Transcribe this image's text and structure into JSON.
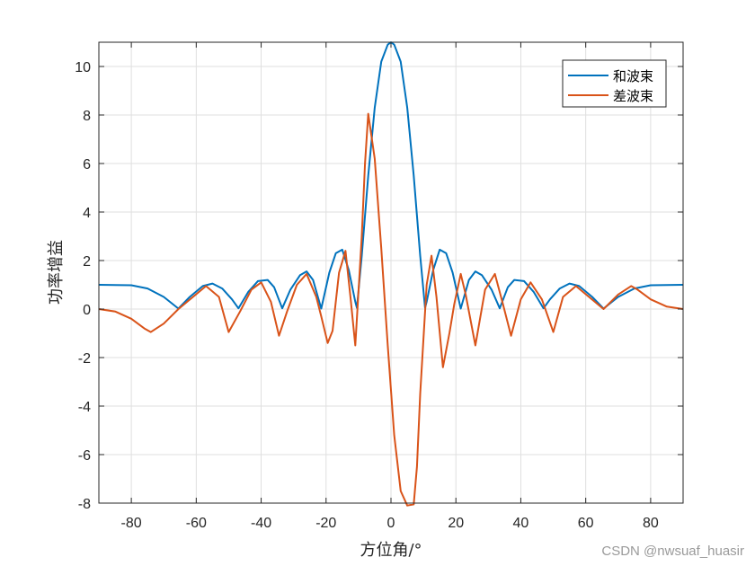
{
  "chart_data": {
    "type": "line",
    "title": "",
    "xlabel": "方位角/°",
    "ylabel": "功率增益",
    "xlim": [
      -90,
      90
    ],
    "ylim": [
      -8,
      11
    ],
    "xticks": [
      -80,
      -60,
      -40,
      -20,
      0,
      20,
      40,
      60,
      80
    ],
    "yticks": [
      -8,
      -6,
      -4,
      -2,
      0,
      2,
      4,
      6,
      8,
      10
    ],
    "grid": true,
    "legend": "top-right",
    "series": [
      {
        "name": "和波束",
        "color": "#0072BD",
        "x": [
          -90,
          -80,
          -75,
          -70,
          -65.5,
          -62,
          -58,
          -55,
          -52,
          -49,
          -47,
          -44,
          -41,
          -38,
          -36,
          -33.5,
          -31,
          -28,
          -26,
          -24,
          -21.5,
          -19,
          -17,
          -15,
          -13,
          -11,
          -10.5,
          -9,
          -7,
          -5,
          -3,
          -1,
          0,
          1,
          3,
          5,
          7,
          9,
          10.5,
          11,
          13,
          15,
          17,
          19,
          21.5,
          24,
          26,
          28,
          31,
          33.5,
          36,
          38,
          41,
          44,
          47,
          49,
          52,
          55,
          58,
          62,
          65.5,
          70,
          75,
          80,
          90
        ],
        "y": [
          1.0,
          0.98,
          0.85,
          0.5,
          0.02,
          0.5,
          0.95,
          1.05,
          0.85,
          0.4,
          0.03,
          0.7,
          1.15,
          1.2,
          0.9,
          0.03,
          0.8,
          1.4,
          1.55,
          1.2,
          0.02,
          1.5,
          2.3,
          2.45,
          1.6,
          0.3,
          0.05,
          2.2,
          5.5,
          8.3,
          10.2,
          10.9,
          11.0,
          10.9,
          10.2,
          8.3,
          5.5,
          2.2,
          0.05,
          0.3,
          1.6,
          2.45,
          2.3,
          1.5,
          0.02,
          1.2,
          1.55,
          1.4,
          0.8,
          0.03,
          0.9,
          1.2,
          1.15,
          0.7,
          0.03,
          0.4,
          0.85,
          1.05,
          0.95,
          0.5,
          0.02,
          0.5,
          0.85,
          0.98,
          1.0
        ]
      },
      {
        "name": "差波束",
        "color": "#D95319",
        "x": [
          -90,
          -85,
          -80,
          -76,
          -74,
          -70,
          -65.5,
          -61,
          -57,
          -53,
          -50,
          -46.5,
          -43,
          -40,
          -37,
          -34.5,
          -32,
          -29,
          -26,
          -23,
          -21.5,
          -19.5,
          -18,
          -16,
          -14,
          -12.5,
          -11,
          -9,
          -8,
          -7,
          -5,
          -3,
          -1,
          1,
          3,
          5,
          7,
          8,
          9,
          11,
          12.5,
          14,
          16,
          18,
          19.5,
          21.5,
          23,
          26,
          29,
          32,
          34.5,
          37,
          40,
          43,
          46.5,
          50,
          53,
          57,
          61,
          65.5,
          70,
          74,
          76,
          80,
          85,
          90
        ],
        "y": [
          0,
          -0.1,
          -0.4,
          -0.8,
          -0.95,
          -0.6,
          0.0,
          0.5,
          0.95,
          0.5,
          -0.95,
          -0.1,
          0.8,
          1.1,
          0.3,
          -1.1,
          -0.1,
          1.0,
          1.45,
          0.5,
          -0.3,
          -1.4,
          -0.9,
          1.5,
          2.4,
          0.5,
          -1.5,
          3.0,
          6.0,
          8.05,
          6.2,
          2.5,
          -1.5,
          -5.2,
          -7.5,
          -8.1,
          -8.05,
          -6.5,
          -3.5,
          1.0,
          2.2,
          0.5,
          -2.4,
          -1.0,
          0.2,
          1.45,
          0.6,
          -1.5,
          0.8,
          1.45,
          0.2,
          -1.1,
          0.4,
          1.1,
          0.4,
          -0.95,
          0.5,
          0.95,
          0.5,
          0.0,
          0.6,
          0.95,
          0.8,
          0.4,
          0.1,
          0
        ]
      }
    ]
  },
  "watermark": "CSDN @nwsuaf_huasir"
}
